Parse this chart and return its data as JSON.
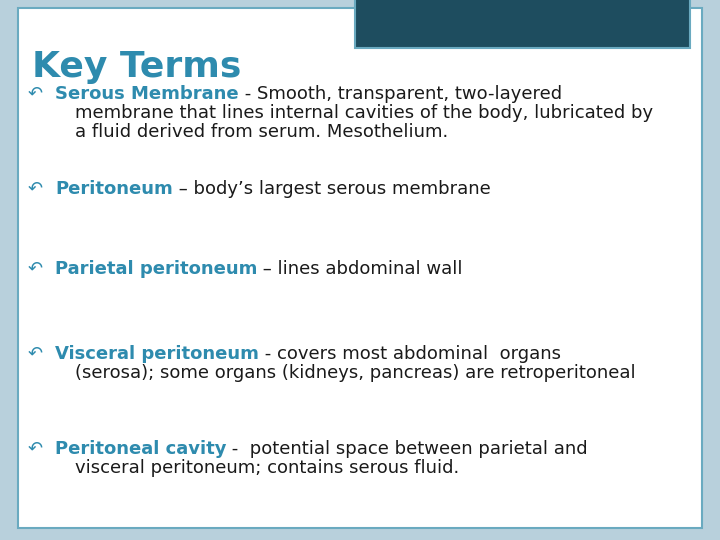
{
  "title": "Key Terms",
  "title_color": "#2E8BAE",
  "background_color": "#B8D0DC",
  "card_color": "#FFFFFF",
  "card_border_color": "#6AAAC0",
  "header_box_color": "#1E4D5F",
  "bullet_color": "#2E8BAE",
  "term_color": "#2E8BAE",
  "def_color": "#1a1a1a",
  "items": [
    {
      "term": "Serous Membrane",
      "separator": " - ",
      "lines": [
        "Smooth, transparent, two-layered",
        "membrane that lines internal cavities of the body, lubricated by",
        "a fluid derived from serum. Mesothelium."
      ]
    },
    {
      "term": "Peritoneum",
      "separator": " – ",
      "lines": [
        "body’s largest serous membrane"
      ]
    },
    {
      "term": "Parietal peritoneum",
      "separator": " – ",
      "lines": [
        "lines abdominal wall"
      ]
    },
    {
      "term": "Visceral peritoneum",
      "separator": " - ",
      "lines": [
        "covers most abdominal  organs",
        "(serosa); some organs (kidneys, pancreas) are retroperitoneal"
      ]
    },
    {
      "term": "Peritoneal cavity",
      "separator": " -  ",
      "lines": [
        "potential space between parietal and",
        "visceral peritoneum; contains serous fluid."
      ]
    }
  ],
  "title_fontsize": 26,
  "term_fontsize": 13,
  "def_fontsize": 13,
  "bullet_fontsize": 13
}
